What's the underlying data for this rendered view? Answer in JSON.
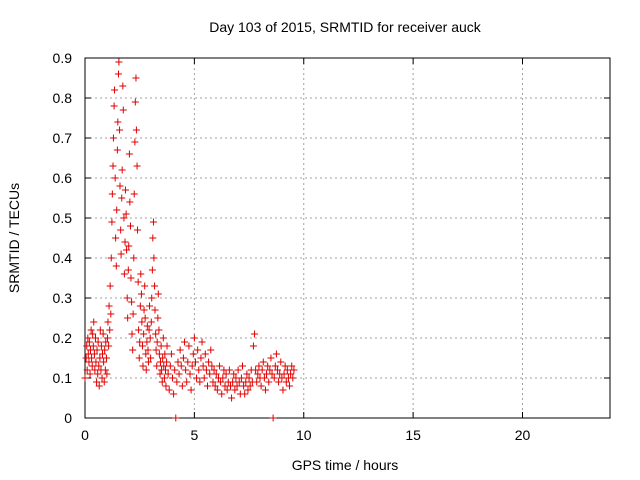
{
  "chart_data": {
    "type": "scatter",
    "title": "Day 103 of 2015, SRMTID for receiver auck",
    "xlabel": "GPS time / hours",
    "ylabel": "SRMTID / TECUs",
    "xlim": [
      0,
      24
    ],
    "ylim": [
      0,
      0.9
    ],
    "xticks": [
      "0",
      "5",
      "10",
      "15",
      "20"
    ],
    "yticks": [
      "0",
      "0.1",
      "0.2",
      "0.3",
      "0.4",
      "0.5",
      "0.6",
      "0.7",
      "0.8",
      "0.9"
    ],
    "grid": true,
    "marker": "plus",
    "color": "#e00000",
    "points": [
      [
        0.0,
        0.1
      ],
      [
        0.05,
        0.15
      ],
      [
        0.08,
        0.18
      ],
      [
        0.1,
        0.12
      ],
      [
        0.13,
        0.2
      ],
      [
        0.15,
        0.16
      ],
      [
        0.18,
        0.14
      ],
      [
        0.2,
        0.19
      ],
      [
        0.23,
        0.11
      ],
      [
        0.25,
        0.17
      ],
      [
        0.28,
        0.22
      ],
      [
        0.3,
        0.15
      ],
      [
        0.33,
        0.13
      ],
      [
        0.35,
        0.21
      ],
      [
        0.38,
        0.18
      ],
      [
        0.4,
        0.24
      ],
      [
        0.43,
        0.16
      ],
      [
        0.45,
        0.12
      ],
      [
        0.48,
        0.2
      ],
      [
        0.5,
        0.14
      ],
      [
        0.53,
        0.09
      ],
      [
        0.55,
        0.17
      ],
      [
        0.58,
        0.11
      ],
      [
        0.6,
        0.19
      ],
      [
        0.63,
        0.13
      ],
      [
        0.65,
        0.08
      ],
      [
        0.68,
        0.15
      ],
      [
        0.7,
        0.22
      ],
      [
        0.73,
        0.12
      ],
      [
        0.75,
        0.18
      ],
      [
        0.78,
        0.1
      ],
      [
        0.8,
        0.16
      ],
      [
        0.83,
        0.21
      ],
      [
        0.85,
        0.14
      ],
      [
        0.88,
        0.09
      ],
      [
        0.9,
        0.17
      ],
      [
        0.93,
        0.12
      ],
      [
        0.95,
        0.19
      ],
      [
        0.98,
        0.15
      ],
      [
        1.0,
        0.11
      ],
      [
        1.03,
        0.2
      ],
      [
        1.05,
        0.24
      ],
      [
        1.08,
        0.18
      ],
      [
        1.1,
        0.28
      ],
      [
        1.13,
        0.22
      ],
      [
        1.15,
        0.33
      ],
      [
        1.18,
        0.26
      ],
      [
        1.2,
        0.4
      ],
      [
        1.23,
        0.49
      ],
      [
        1.25,
        0.56
      ],
      [
        1.28,
        0.63
      ],
      [
        1.3,
        0.7
      ],
      [
        1.33,
        0.78
      ],
      [
        1.35,
        0.82
      ],
      [
        1.38,
        0.6
      ],
      [
        1.4,
        0.45
      ],
      [
        1.43,
        0.38
      ],
      [
        1.45,
        0.52
      ],
      [
        1.48,
        0.67
      ],
      [
        1.5,
        0.74
      ],
      [
        1.53,
        0.86
      ],
      [
        1.55,
        0.89
      ],
      [
        1.58,
        0.72
      ],
      [
        1.6,
        0.58
      ],
      [
        1.63,
        0.47
      ],
      [
        1.65,
        0.41
      ],
      [
        1.68,
        0.55
      ],
      [
        1.7,
        0.62
      ],
      [
        1.73,
        0.83
      ],
      [
        1.75,
        0.77
      ],
      [
        1.78,
        0.5
      ],
      [
        1.8,
        0.36
      ],
      [
        1.83,
        0.44
      ],
      [
        1.85,
        0.57
      ],
      [
        1.88,
        0.51
      ],
      [
        1.9,
        0.42
      ],
      [
        1.93,
        0.3
      ],
      [
        1.95,
        0.25
      ],
      [
        1.98,
        0.37
      ],
      [
        2.0,
        0.43
      ],
      [
        2.03,
        0.66
      ],
      [
        2.05,
        0.54
      ],
      [
        2.08,
        0.48
      ],
      [
        2.1,
        0.35
      ],
      [
        2.13,
        0.29
      ],
      [
        2.15,
        0.21
      ],
      [
        2.18,
        0.17
      ],
      [
        2.2,
        0.26
      ],
      [
        2.23,
        0.4
      ],
      [
        2.25,
        0.56
      ],
      [
        2.28,
        0.69
      ],
      [
        2.3,
        0.79
      ],
      [
        2.33,
        0.85
      ],
      [
        2.35,
        0.72
      ],
      [
        2.38,
        0.63
      ],
      [
        2.4,
        0.47
      ],
      [
        2.43,
        0.34
      ],
      [
        2.45,
        0.22
      ],
      [
        2.48,
        0.15
      ],
      [
        2.5,
        0.19
      ],
      [
        2.53,
        0.28
      ],
      [
        2.55,
        0.36
      ],
      [
        2.58,
        0.31
      ],
      [
        2.6,
        0.24
      ],
      [
        2.63,
        0.18
      ],
      [
        2.65,
        0.13
      ],
      [
        2.68,
        0.21
      ],
      [
        2.7,
        0.27
      ],
      [
        2.73,
        0.33
      ],
      [
        2.75,
        0.25
      ],
      [
        2.78,
        0.16
      ],
      [
        2.8,
        0.12
      ],
      [
        2.83,
        0.19
      ],
      [
        2.85,
        0.23
      ],
      [
        2.88,
        0.17
      ],
      [
        2.9,
        0.14
      ],
      [
        2.93,
        0.22
      ],
      [
        2.95,
        0.28
      ],
      [
        2.98,
        0.2
      ],
      [
        3.0,
        0.15
      ],
      [
        3.03,
        0.24
      ],
      [
        3.05,
        0.3
      ],
      [
        3.08,
        0.37
      ],
      [
        3.1,
        0.45
      ],
      [
        3.13,
        0.49
      ],
      [
        3.15,
        0.4
      ],
      [
        3.18,
        0.33
      ],
      [
        3.2,
        0.27
      ],
      [
        3.23,
        0.21
      ],
      [
        3.25,
        0.17
      ],
      [
        3.28,
        0.13
      ],
      [
        3.3,
        0.19
      ],
      [
        3.33,
        0.25
      ],
      [
        3.35,
        0.31
      ],
      [
        3.38,
        0.22
      ],
      [
        3.4,
        0.16
      ],
      [
        3.43,
        0.11
      ],
      [
        3.45,
        0.14
      ],
      [
        3.48,
        0.18
      ],
      [
        3.5,
        0.12
      ],
      [
        3.53,
        0.09
      ],
      [
        3.55,
        0.15
      ],
      [
        3.58,
        0.2
      ],
      [
        3.6,
        0.13
      ],
      [
        3.63,
        0.1
      ],
      [
        3.65,
        0.16
      ],
      [
        3.68,
        0.12
      ],
      [
        3.7,
        0.08
      ],
      [
        3.73,
        0.14
      ],
      [
        3.75,
        0.18
      ],
      [
        3.8,
        0.11
      ],
      [
        3.85,
        0.07
      ],
      [
        3.9,
        0.13
      ],
      [
        3.95,
        0.16
      ],
      [
        4.0,
        0.1
      ],
      [
        4.05,
        0.06
      ],
      [
        4.1,
        0.12
      ],
      [
        4.15,
        0.0
      ],
      [
        4.2,
        0.09
      ],
      [
        4.25,
        0.14
      ],
      [
        4.3,
        0.11
      ],
      [
        4.35,
        0.17
      ],
      [
        4.4,
        0.13
      ],
      [
        4.45,
        0.08
      ],
      [
        4.5,
        0.15
      ],
      [
        4.55,
        0.19
      ],
      [
        4.6,
        0.12
      ],
      [
        4.65,
        0.09
      ],
      [
        4.7,
        0.14
      ],
      [
        4.75,
        0.18
      ],
      [
        4.8,
        0.11
      ],
      [
        4.85,
        0.07
      ],
      [
        4.9,
        0.13
      ],
      [
        4.95,
        0.16
      ],
      [
        5.0,
        0.2
      ],
      [
        5.05,
        0.14
      ],
      [
        5.1,
        0.1
      ],
      [
        5.15,
        0.17
      ],
      [
        5.2,
        0.12
      ],
      [
        5.25,
        0.09
      ],
      [
        5.3,
        0.15
      ],
      [
        5.35,
        0.19
      ],
      [
        5.4,
        0.13
      ],
      [
        5.45,
        0.1
      ],
      [
        5.5,
        0.16
      ],
      [
        5.55,
        0.12
      ],
      [
        5.6,
        0.08
      ],
      [
        5.65,
        0.14
      ],
      [
        5.7,
        0.11
      ],
      [
        5.75,
        0.17
      ],
      [
        5.8,
        0.13
      ],
      [
        5.85,
        0.09
      ],
      [
        5.9,
        0.12
      ],
      [
        5.95,
        0.08
      ],
      [
        6.0,
        0.11
      ],
      [
        6.05,
        0.07
      ],
      [
        6.1,
        0.1
      ],
      [
        6.15,
        0.13
      ],
      [
        6.2,
        0.09
      ],
      [
        6.25,
        0.06
      ],
      [
        6.3,
        0.1
      ],
      [
        6.35,
        0.12
      ],
      [
        6.4,
        0.08
      ],
      [
        6.45,
        0.11
      ],
      [
        6.5,
        0.07
      ],
      [
        6.55,
        0.09
      ],
      [
        6.6,
        0.12
      ],
      [
        6.65,
        0.08
      ],
      [
        6.7,
        0.05
      ],
      [
        6.75,
        0.09
      ],
      [
        6.8,
        0.11
      ],
      [
        6.85,
        0.07
      ],
      [
        6.9,
        0.1
      ],
      [
        6.95,
        0.08
      ],
      [
        7.0,
        0.12
      ],
      [
        7.05,
        0.09
      ],
      [
        7.1,
        0.06
      ],
      [
        7.15,
        0.1
      ],
      [
        7.2,
        0.13
      ],
      [
        7.25,
        0.08
      ],
      [
        7.3,
        0.06
      ],
      [
        7.35,
        0.09
      ],
      [
        7.4,
        0.11
      ],
      [
        7.45,
        0.07
      ],
      [
        7.5,
        0.1
      ],
      [
        7.55,
        0.08
      ],
      [
        7.6,
        0.12
      ],
      [
        7.65,
        0.09
      ],
      [
        7.7,
        0.18
      ],
      [
        7.75,
        0.21
      ],
      [
        7.8,
        0.12
      ],
      [
        7.85,
        0.09
      ],
      [
        7.9,
        0.11
      ],
      [
        7.95,
        0.13
      ],
      [
        8.0,
        0.1
      ],
      [
        8.05,
        0.08
      ],
      [
        8.1,
        0.12
      ],
      [
        8.15,
        0.14
      ],
      [
        8.2,
        0.1
      ],
      [
        8.25,
        0.07
      ],
      [
        8.3,
        0.11
      ],
      [
        8.35,
        0.13
      ],
      [
        8.4,
        0.09
      ],
      [
        8.45,
        0.12
      ],
      [
        8.5,
        0.15
      ],
      [
        8.55,
        0.11
      ],
      [
        8.6,
        0.0
      ],
      [
        8.65,
        0.1
      ],
      [
        8.7,
        0.13
      ],
      [
        8.75,
        0.16
      ],
      [
        8.8,
        0.12
      ],
      [
        8.85,
        0.09
      ],
      [
        8.9,
        0.11
      ],
      [
        8.95,
        0.14
      ],
      [
        9.0,
        0.1
      ],
      [
        9.05,
        0.07
      ],
      [
        9.1,
        0.11
      ],
      [
        9.15,
        0.13
      ],
      [
        9.2,
        0.09
      ],
      [
        9.25,
        0.12
      ],
      [
        9.3,
        0.1
      ],
      [
        9.35,
        0.08
      ],
      [
        9.4,
        0.11
      ],
      [
        9.45,
        0.13
      ],
      [
        9.5,
        0.1
      ],
      [
        9.55,
        0.12
      ]
    ]
  }
}
